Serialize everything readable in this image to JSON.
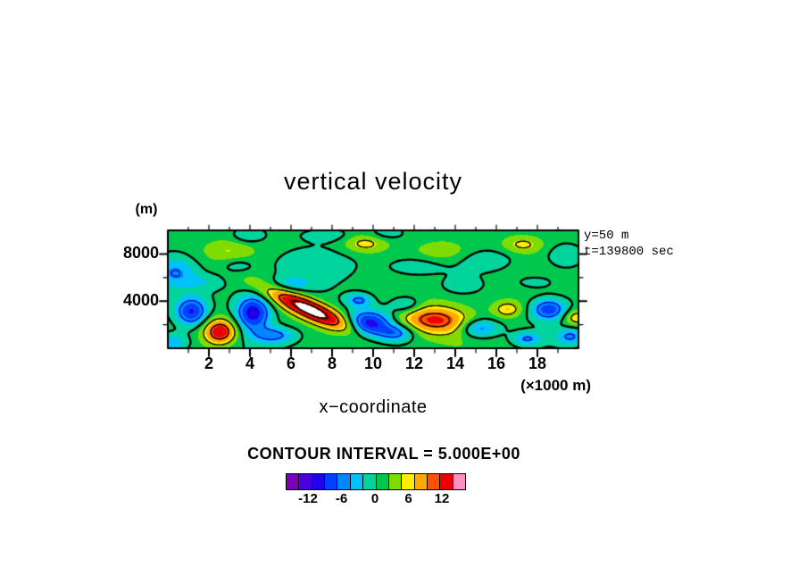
{
  "chart_data": {
    "type": "heatmap",
    "subtype": "filled-contour",
    "title": "vertical velocity",
    "xlabel": "x−coordinate",
    "x_unit_label": "(×1000 m)",
    "ylabel": "(m)",
    "annotations": {
      "slice": "y=50 m",
      "time": "t=139800 sec"
    },
    "contour_interval_label": "CONTOUR INTERVAL = 5.000E+00",
    "contour_interval": 5.0,
    "x_range_km": [
      0,
      20
    ],
    "y_range_m": [
      0,
      10000
    ],
    "x_ticks": [
      2,
      4,
      6,
      8,
      10,
      12,
      14,
      16,
      18
    ],
    "x_minor_ticks": [
      1,
      3,
      5,
      7,
      9,
      11,
      13,
      15,
      17,
      19
    ],
    "y_ticks": [
      4000,
      8000
    ],
    "y_minor_ticks": [
      2000,
      6000
    ],
    "grid": false,
    "legend_position": "bottom-colorbar",
    "colorbar": {
      "range": [
        -16,
        16
      ],
      "colors": [
        "#7a00b8",
        "#4b00e0",
        "#2400f0",
        "#0040ff",
        "#0086ff",
        "#00c2f8",
        "#00d49c",
        "#00c84f",
        "#7edc00",
        "#ffee00",
        "#ffaa00",
        "#ff5100",
        "#ec0000",
        "#ff8fc0"
      ],
      "tick_labels": [
        "-12",
        "-6",
        "0",
        "6",
        "12"
      ],
      "tick_values": [
        -12,
        -6,
        0,
        6,
        12
      ]
    },
    "field_colors": [
      "#7a00b8",
      "#4b00e0",
      "#2400f0",
      "#0040ff",
      "#0086ff",
      "#00c2f8",
      "#00d49c",
      "#00c84f",
      "#7edc00",
      "#ffee00",
      "#ffaa00",
      "#ff5100",
      "#ec0000",
      "#c40000"
    ],
    "over_color": "#ffffff",
    "contour_levels_solid": [
      0,
      5,
      10,
      15
    ],
    "contour_levels_dashed": [
      -15,
      -10,
      -5
    ],
    "line_color_solid": "#000000",
    "dashed_color": "#0000cc",
    "field_model": {
      "baseline": 1.0,
      "waves": [
        {
          "a": 0.7,
          "kx": 0.9,
          "ky": 0.5,
          "phase": 1.0
        },
        {
          "a": 0.4,
          "kx": 0.35,
          "ky": 1.3,
          "phase": 3.0
        }
      ],
      "blobs": [
        {
          "x": 6.9,
          "y": 3.3,
          "sx": 1.85,
          "sy": 0.5,
          "amp": 17,
          "rot": -40
        },
        {
          "x": 2.55,
          "y": 1.4,
          "sx": 0.55,
          "sy": 0.75,
          "amp": 13,
          "rot": 0
        },
        {
          "x": 13.0,
          "y": 2.4,
          "sx": 1.2,
          "sy": 0.85,
          "amp": 11.5,
          "rot": -8
        },
        {
          "x": 16.55,
          "y": 3.3,
          "sx": 0.5,
          "sy": 0.5,
          "amp": 6,
          "rot": 0
        },
        {
          "x": 9.6,
          "y": 8.9,
          "sx": 0.7,
          "sy": 0.55,
          "amp": 5,
          "rot": 0
        },
        {
          "x": 17.3,
          "y": 8.8,
          "sx": 0.65,
          "sy": 0.5,
          "amp": 4.5,
          "rot": 0
        },
        {
          "x": 2.9,
          "y": 8.3,
          "sx": 0.9,
          "sy": 0.7,
          "amp": 3.5,
          "rot": 0
        },
        {
          "x": 13.4,
          "y": 8.2,
          "sx": 0.9,
          "sy": 0.6,
          "amp": 3,
          "rot": 0
        },
        {
          "x": 19.9,
          "y": 2.6,
          "sx": 0.4,
          "sy": 0.45,
          "amp": 6,
          "rot": 0
        },
        {
          "x": 1.15,
          "y": 3.1,
          "sx": 0.55,
          "sy": 0.85,
          "amp": -10.5,
          "rot": 0
        },
        {
          "x": 4.15,
          "y": 3.0,
          "sx": 0.6,
          "sy": 1.05,
          "amp": -12,
          "rot": 0
        },
        {
          "x": 5.2,
          "y": 1.1,
          "sx": 0.75,
          "sy": 0.5,
          "amp": -6.5,
          "rot": 0
        },
        {
          "x": 9.8,
          "y": 2.1,
          "sx": 0.8,
          "sy": 0.8,
          "amp": -11.5,
          "rot": 0
        },
        {
          "x": 11.15,
          "y": 1.3,
          "sx": 0.6,
          "sy": 0.5,
          "amp": -6.5,
          "rot": 0
        },
        {
          "x": 11.6,
          "y": 3.7,
          "sx": 0.55,
          "sy": 0.5,
          "amp": -5,
          "rot": 0
        },
        {
          "x": 15.15,
          "y": 1.7,
          "sx": 0.65,
          "sy": 0.55,
          "amp": -7.5,
          "rot": 0
        },
        {
          "x": 18.55,
          "y": 3.3,
          "sx": 0.6,
          "sy": 0.65,
          "amp": -9.5,
          "rot": 0
        },
        {
          "x": 19.6,
          "y": 1.0,
          "sx": 0.5,
          "sy": 0.5,
          "amp": -6.5,
          "rot": 0
        },
        {
          "x": 17.5,
          "y": 0.8,
          "sx": 0.5,
          "sy": 0.4,
          "amp": -6,
          "rot": 0
        },
        {
          "x": 0.25,
          "y": 0.5,
          "sx": 0.55,
          "sy": 0.55,
          "amp": -5.5,
          "rot": 0
        },
        {
          "x": 0.35,
          "y": 6.4,
          "sx": 0.7,
          "sy": 0.9,
          "amp": -5.5,
          "rot": 0
        },
        {
          "x": 6.8,
          "y": 7.1,
          "sx": 1.6,
          "sy": 0.9,
          "amp": -2.8,
          "rot": 0
        },
        {
          "x": 3.4,
          "y": 7.0,
          "sx": 0.6,
          "sy": 0.5,
          "amp": -3,
          "rot": 0
        },
        {
          "x": 3.9,
          "y": 9.5,
          "sx": 0.5,
          "sy": 0.4,
          "amp": -3,
          "rot": 0
        },
        {
          "x": 11.9,
          "y": 6.9,
          "sx": 0.9,
          "sy": 0.55,
          "amp": -2.8,
          "rot": 0
        },
        {
          "x": 15.6,
          "y": 7.5,
          "sx": 0.8,
          "sy": 0.55,
          "amp": -2.5,
          "rot": 0
        },
        {
          "x": 19.3,
          "y": 7.8,
          "sx": 0.6,
          "sy": 0.7,
          "amp": -3.5,
          "rot": 0
        },
        {
          "x": 10.6,
          "y": 9.7,
          "sx": 0.7,
          "sy": 0.4,
          "amp": -2.5,
          "rot": 0
        },
        {
          "x": 7.8,
          "y": 9.6,
          "sx": 0.8,
          "sy": 0.4,
          "amp": -2.5,
          "rot": 0
        },
        {
          "x": 14.3,
          "y": 5.3,
          "sx": 0.7,
          "sy": 0.5,
          "amp": -2.5,
          "rot": 0
        },
        {
          "x": 17.9,
          "y": 5.6,
          "sx": 0.8,
          "sy": 0.5,
          "amp": -2.3,
          "rot": 0
        },
        {
          "x": 1.9,
          "y": 5.6,
          "sx": 0.7,
          "sy": 0.5,
          "amp": -2.5,
          "rot": 0
        },
        {
          "x": 5.9,
          "y": 5.4,
          "sx": 0.8,
          "sy": 0.5,
          "amp": -4,
          "rot": 0
        },
        {
          "x": 9.3,
          "y": 4.1,
          "sx": 0.45,
          "sy": 0.4,
          "amp": -6.5,
          "rot": 0
        }
      ]
    }
  }
}
